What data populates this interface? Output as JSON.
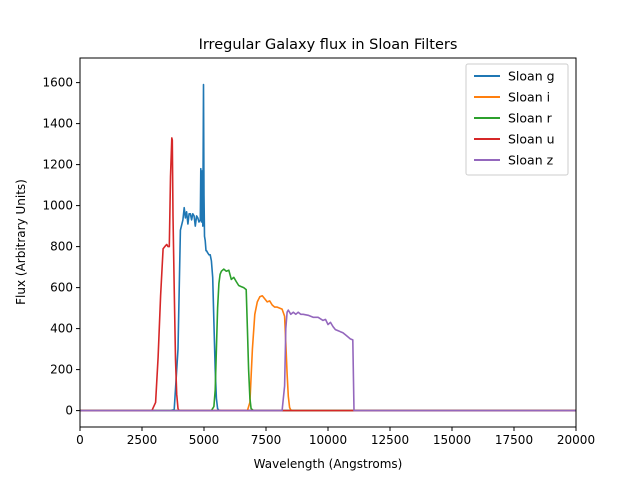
{
  "chart_data": {
    "type": "line",
    "title": "Irregular Galaxy flux in Sloan Filters",
    "xlabel": "Wavelength (Angstroms)",
    "ylabel": "Flux (Arbitrary Units)",
    "xlim": [
      0,
      20000
    ],
    "ylim": [
      -80,
      1720
    ],
    "xticks": [
      0,
      2500,
      5000,
      7500,
      10000,
      12500,
      15000,
      17500,
      20000
    ],
    "yticks": [
      0,
      200,
      400,
      600,
      800,
      1000,
      1200,
      1400,
      1600
    ],
    "grid": false,
    "legend": "top-right",
    "series": [
      {
        "name": "Sloan g",
        "color": "#1f77b4",
        "x": [
          0,
          3600,
          3800,
          3950,
          4050,
          4150,
          4200,
          4250,
          4300,
          4350,
          4400,
          4450,
          4500,
          4550,
          4600,
          4650,
          4700,
          4750,
          4800,
          4850,
          4870,
          4900,
          4930,
          4950,
          4980,
          5000,
          5020,
          5050,
          5080,
          5100,
          5150,
          5200,
          5250,
          5300,
          5350,
          5400,
          5450,
          5500,
          5550,
          5600,
          5700,
          20000
        ],
        "y": [
          0,
          0,
          5,
          300,
          880,
          930,
          990,
          940,
          970,
          910,
          960,
          960,
          930,
          960,
          950,
          900,
          950,
          940,
          920,
          930,
          1180,
          920,
          1170,
          900,
          1590,
          1050,
          850,
          830,
          780,
          780,
          770,
          760,
          760,
          730,
          650,
          430,
          200,
          60,
          10,
          2,
          0,
          0
        ]
      },
      {
        "name": "Sloan i",
        "color": "#ff7f0e",
        "x": [
          0,
          6750,
          6850,
          6950,
          7050,
          7150,
          7250,
          7350,
          7450,
          7550,
          7650,
          7750,
          7850,
          7950,
          8050,
          8150,
          8250,
          8300,
          8350,
          8400,
          8450,
          8500,
          8600,
          20000
        ],
        "y": [
          0,
          0,
          40,
          300,
          470,
          530,
          555,
          560,
          545,
          530,
          535,
          515,
          505,
          505,
          500,
          495,
          460,
          330,
          180,
          70,
          15,
          3,
          0,
          0
        ]
      },
      {
        "name": "Sloan r",
        "color": "#2ca02c",
        "x": [
          0,
          5300,
          5400,
          5450,
          5500,
          5550,
          5600,
          5650,
          5700,
          5800,
          5900,
          6000,
          6100,
          6200,
          6300,
          6400,
          6500,
          6600,
          6700,
          6750,
          6800,
          6850,
          6900,
          7000,
          20000
        ],
        "y": [
          0,
          0,
          20,
          100,
          300,
          500,
          620,
          665,
          680,
          690,
          680,
          685,
          640,
          650,
          630,
          610,
          605,
          600,
          590,
          400,
          200,
          60,
          10,
          0,
          0
        ]
      },
      {
        "name": "Sloan u",
        "color": "#d62728",
        "x": [
          0,
          2900,
          3050,
          3150,
          3250,
          3350,
          3450,
          3500,
          3550,
          3600,
          3650,
          3700,
          3720,
          3750,
          3800,
          3850,
          3900,
          3950,
          4000,
          20000
        ],
        "y": [
          0,
          0,
          40,
          260,
          560,
          790,
          805,
          810,
          800,
          800,
          1140,
          1330,
          1320,
          950,
          600,
          250,
          80,
          10,
          0,
          0
        ]
      },
      {
        "name": "Sloan z",
        "color": "#9467bd",
        "x": [
          0,
          8150,
          8250,
          8300,
          8350,
          8400,
          8500,
          8600,
          8700,
          8800,
          8900,
          9000,
          9200,
          9400,
          9600,
          9800,
          9900,
          10000,
          10100,
          10200,
          10300,
          10400,
          10500,
          10600,
          10700,
          10800,
          10900,
          11000,
          11050,
          20000
        ],
        "y": [
          0,
          0,
          120,
          400,
          480,
          490,
          470,
          480,
          470,
          480,
          470,
          470,
          465,
          455,
          455,
          440,
          445,
          420,
          430,
          410,
          395,
          390,
          385,
          380,
          370,
          360,
          350,
          345,
          0,
          0
        ]
      }
    ]
  }
}
